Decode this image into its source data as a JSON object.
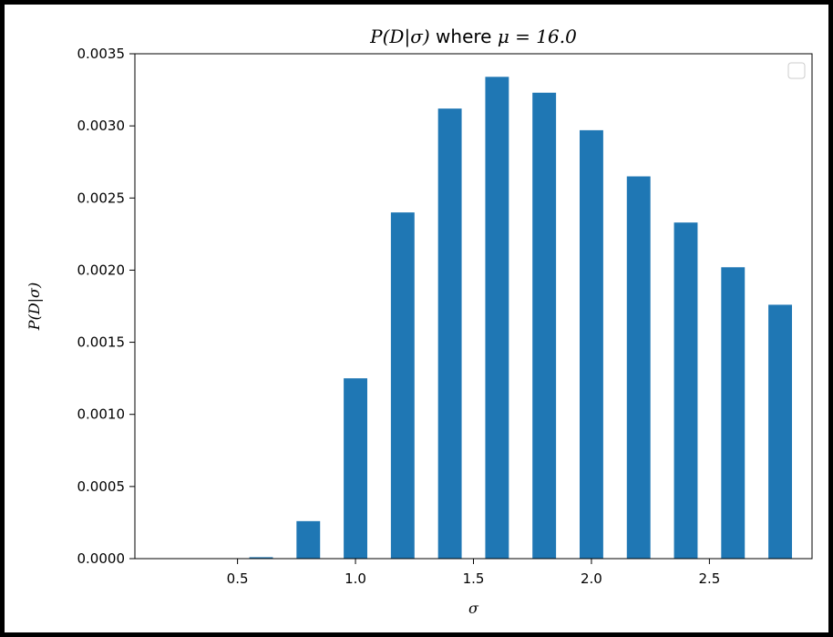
{
  "chart_data": {
    "type": "bar",
    "title": "P(D|σ) where μ = 16.0",
    "title_parts": {
      "prefix": "P(D|σ)",
      "middle": " where ",
      "suffix": "μ = 16.0"
    },
    "xlabel": "σ",
    "ylabel": "P(D|σ)",
    "x": [
      0.2,
      0.4,
      0.6,
      0.8,
      1.0,
      1.2,
      1.4,
      1.6,
      1.8,
      2.0,
      2.2,
      2.4,
      2.6,
      2.8
    ],
    "values": [
      0.0,
      0.0,
      1e-05,
      0.00026,
      0.00125,
      0.0024,
      0.00312,
      0.00334,
      0.00323,
      0.00297,
      0.00265,
      0.00233,
      0.00202,
      0.00176
    ],
    "bar_width": 0.1,
    "xlim": [
      0.065,
      2.935
    ],
    "ylim": [
      0,
      0.0035
    ],
    "xticks": [
      0.5,
      1.0,
      1.5,
      2.0,
      2.5
    ],
    "xtick_labels": [
      "0.5",
      "1.0",
      "1.5",
      "2.0",
      "2.5"
    ],
    "yticks": [
      0,
      0.0005,
      0.001,
      0.0015,
      0.002,
      0.0025,
      0.003,
      0.0035
    ],
    "ytick_labels": [
      "0.0000",
      "0.0005",
      "0.0010",
      "0.0015",
      "0.0020",
      "0.0025",
      "0.0030",
      "0.0035"
    ],
    "bar_color": "#1f77b4",
    "grid": false,
    "legend": {
      "placement": "top-right",
      "entries": []
    }
  }
}
